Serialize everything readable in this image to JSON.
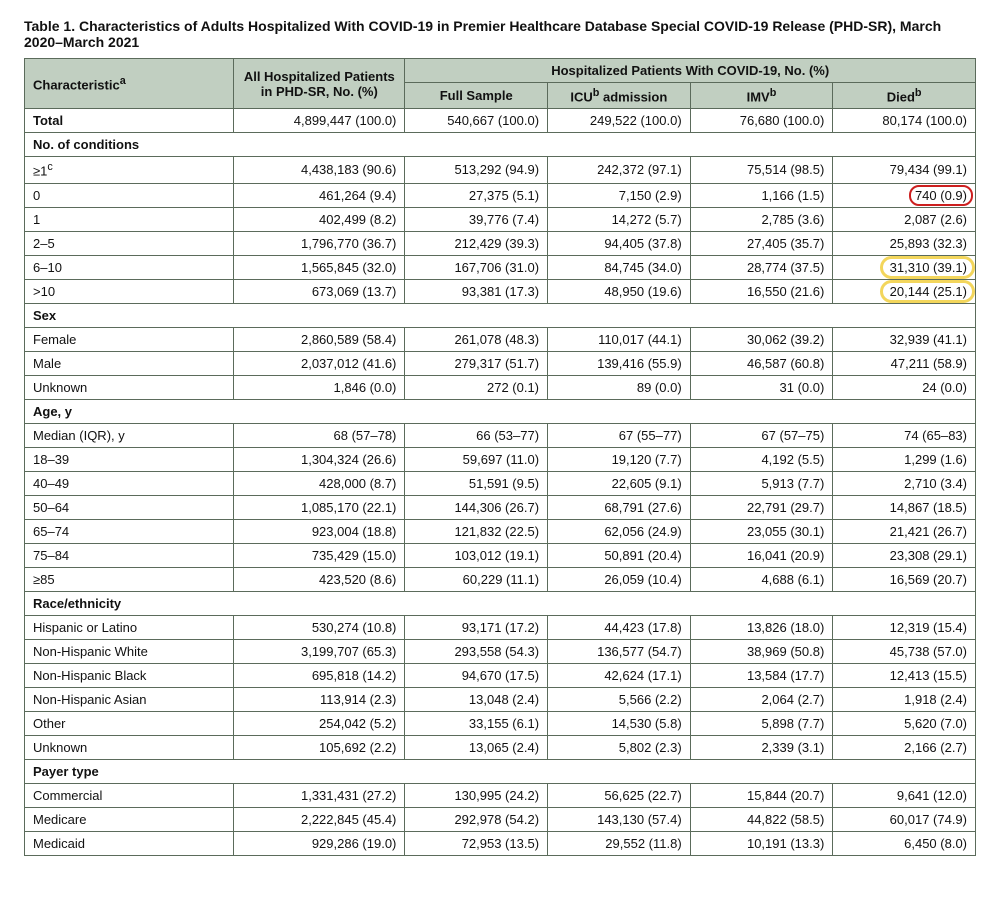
{
  "title": "Table 1. Characteristics of Adults Hospitalized With COVID-19 in Premier Healthcare Database Special COVID-19 Release (PHD-SR), March 2020–March 2021",
  "header": {
    "characteristic": "Characteristic",
    "characteristic_sup": "a",
    "all_hosp": "All Hospitalized Patients in PHD-SR, No. (%)",
    "span": "Hospitalized Patients With COVID-19, No. (%)",
    "full": "Full Sample",
    "icu": "ICU",
    "icu_sup": "b",
    "icu_tail": " admission",
    "imv": "IMV",
    "imv_sup": "b",
    "died": "Died",
    "died_sup": "b"
  },
  "sections": [
    {
      "kind": "total",
      "label": "Total",
      "cells": [
        "4,899,447 (100.0)",
        "540,667 (100.0)",
        "249,522 (100.0)",
        "76,680 (100.0)",
        "80,174 (100.0)"
      ]
    },
    {
      "kind": "section",
      "label": "No. of conditions"
    },
    {
      "kind": "row",
      "label": "≥1",
      "sup": "c",
      "cells": [
        "4,438,183 (90.6)",
        "513,292 (94.9)",
        "242,372 (97.1)",
        "75,514 (98.5)",
        "79,434 (99.1)"
      ]
    },
    {
      "kind": "row",
      "label": "0",
      "cells": [
        "461,264 (9.4)",
        "27,375 (5.1)",
        "7,150 (2.9)",
        "1,166 (1.5)",
        "740 (0.9)"
      ],
      "annot": {
        "col": 4,
        "type": "red"
      }
    },
    {
      "kind": "row",
      "label": "1",
      "cells": [
        "402,499 (8.2)",
        "39,776 (7.4)",
        "14,272 (5.7)",
        "2,785 (3.6)",
        "2,087 (2.6)"
      ]
    },
    {
      "kind": "row",
      "label": "2–5",
      "cells": [
        "1,796,770 (36.7)",
        "212,429 (39.3)",
        "94,405 (37.8)",
        "27,405 (35.7)",
        "25,893 (32.3)"
      ]
    },
    {
      "kind": "row",
      "label": "6–10",
      "cells": [
        "1,565,845 (32.0)",
        "167,706 (31.0)",
        "84,745 (34.0)",
        "28,774 (37.5)",
        "31,310 (39.1)"
      ],
      "annot": {
        "col": 4,
        "type": "yellow"
      }
    },
    {
      "kind": "row",
      "label": ">10",
      "cells": [
        "673,069 (13.7)",
        "93,381 (17.3)",
        "48,950 (19.6)",
        "16,550 (21.6)",
        "20,144 (25.1)"
      ],
      "annot": {
        "col": 4,
        "type": "yellow"
      }
    },
    {
      "kind": "section",
      "label": "Sex"
    },
    {
      "kind": "row",
      "label": "Female",
      "cells": [
        "2,860,589 (58.4)",
        "261,078 (48.3)",
        "110,017 (44.1)",
        "30,062 (39.2)",
        "32,939 (41.1)"
      ]
    },
    {
      "kind": "row",
      "label": "Male",
      "cells": [
        "2,037,012 (41.6)",
        "279,317 (51.7)",
        "139,416 (55.9)",
        "46,587 (60.8)",
        "47,211 (58.9)"
      ]
    },
    {
      "kind": "row",
      "label": "Unknown",
      "cells": [
        "1,846 (0.0)",
        "272 (0.1)",
        "89 (0.0)",
        "31 (0.0)",
        "24 (0.0)"
      ]
    },
    {
      "kind": "section",
      "label": "Age, y"
    },
    {
      "kind": "row",
      "label": "Median (IQR), y",
      "cells": [
        "68 (57–78)",
        "66 (53–77)",
        "67 (55–77)",
        "67 (57–75)",
        "74 (65–83)"
      ]
    },
    {
      "kind": "row",
      "label": "18–39",
      "cells": [
        "1,304,324 (26.6)",
        "59,697 (11.0)",
        "19,120 (7.7)",
        "4,192 (5.5)",
        "1,299 (1.6)"
      ]
    },
    {
      "kind": "row",
      "label": "40–49",
      "cells": [
        "428,000 (8.7)",
        "51,591 (9.5)",
        "22,605 (9.1)",
        "5,913 (7.7)",
        "2,710 (3.4)"
      ]
    },
    {
      "kind": "row",
      "label": "50–64",
      "cells": [
        "1,085,170 (22.1)",
        "144,306 (26.7)",
        "68,791 (27.6)",
        "22,791 (29.7)",
        "14,867 (18.5)"
      ]
    },
    {
      "kind": "row",
      "label": "65–74",
      "cells": [
        "923,004 (18.8)",
        "121,832 (22.5)",
        "62,056 (24.9)",
        "23,055 (30.1)",
        "21,421 (26.7)"
      ]
    },
    {
      "kind": "row",
      "label": "75–84",
      "cells": [
        "735,429 (15.0)",
        "103,012 (19.1)",
        "50,891 (20.4)",
        "16,041 (20.9)",
        "23,308 (29.1)"
      ]
    },
    {
      "kind": "row",
      "label": "≥85",
      "cells": [
        "423,520 (8.6)",
        "60,229 (11.1)",
        "26,059 (10.4)",
        "4,688 (6.1)",
        "16,569 (20.7)"
      ]
    },
    {
      "kind": "section",
      "label": "Race/ethnicity"
    },
    {
      "kind": "row",
      "label": "Hispanic or Latino",
      "cells": [
        "530,274 (10.8)",
        "93,171 (17.2)",
        "44,423 (17.8)",
        "13,826 (18.0)",
        "12,319 (15.4)"
      ]
    },
    {
      "kind": "row",
      "label": "Non-Hispanic White",
      "cells": [
        "3,199,707 (65.3)",
        "293,558 (54.3)",
        "136,577 (54.7)",
        "38,969 (50.8)",
        "45,738 (57.0)"
      ]
    },
    {
      "kind": "row",
      "label": "Non-Hispanic Black",
      "cells": [
        "695,818 (14.2)",
        "94,670 (17.5)",
        "42,624 (17.1)",
        "13,584 (17.7)",
        "12,413 (15.5)"
      ]
    },
    {
      "kind": "row",
      "label": "Non-Hispanic Asian",
      "cells": [
        "113,914 (2.3)",
        "13,048 (2.4)",
        "5,566 (2.2)",
        "2,064 (2.7)",
        "1,918 (2.4)"
      ]
    },
    {
      "kind": "row",
      "label": "Other",
      "cells": [
        "254,042 (5.2)",
        "33,155 (6.1)",
        "14,530 (5.8)",
        "5,898 (7.7)",
        "5,620 (7.0)"
      ]
    },
    {
      "kind": "row",
      "label": "Unknown",
      "cells": [
        "105,692 (2.2)",
        "13,065 (2.4)",
        "5,802 (2.3)",
        "2,339 (3.1)",
        "2,166 (2.7)"
      ]
    },
    {
      "kind": "section",
      "label": "Payer type"
    },
    {
      "kind": "row",
      "label": "Commercial",
      "cells": [
        "1,331,431 (27.2)",
        "130,995 (24.2)",
        "56,625 (22.7)",
        "15,844 (20.7)",
        "9,641 (12.0)"
      ]
    },
    {
      "kind": "row",
      "label": "Medicare",
      "cells": [
        "2,222,845 (45.4)",
        "292,978 (54.2)",
        "143,130 (57.4)",
        "44,822 (58.5)",
        "60,017 (74.9)"
      ]
    },
    {
      "kind": "row",
      "label": "Medicaid",
      "cells": [
        "929,286 (19.0)",
        "72,953 (13.5)",
        "29,552 (11.8)",
        "10,191 (13.3)",
        "6,450 (8.0)"
      ]
    }
  ],
  "styles": {
    "header_bg": "#c1cfc1",
    "border_color": "#5b6b5b",
    "red": "#cc1f1f",
    "yellow": "#f2d24a"
  }
}
